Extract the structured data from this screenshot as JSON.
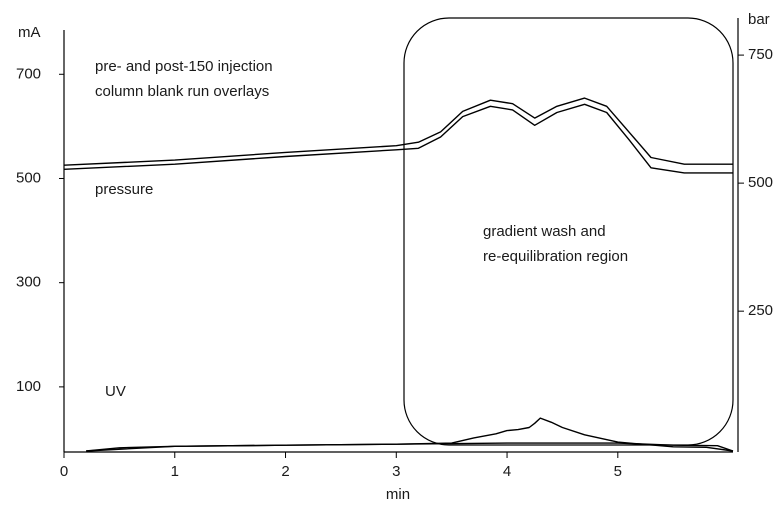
{
  "chart_data": {
    "type": "line",
    "annotations": [
      "pre- and post-150 injection",
      "column blank run overlays",
      "pressure",
      "gradient wash and",
      "re-equilibration region",
      "UV"
    ],
    "xlabel": "min",
    "ylabel": "mA",
    "y2label": "bar",
    "xlim": [
      0,
      6.04
    ],
    "xticks": [
      0,
      1,
      2,
      3,
      4,
      5
    ],
    "ylim": [
      -25,
      785
    ],
    "yticks": [
      100,
      300,
      500,
      700
    ],
    "y2lim": [
      -25,
      799
    ],
    "y2ticks": [
      250,
      500,
      750
    ],
    "series": [
      {
        "color": "#000000",
        "axis": "y2",
        "x": [
          0,
          1,
          2,
          3,
          3.2,
          3.4,
          3.6,
          3.85,
          4.05,
          4.25,
          4.45,
          4.7,
          4.9,
          5.1,
          5.3,
          5.6,
          6.04
        ],
        "values": [
          535,
          545,
          560,
          573,
          580,
          600,
          640,
          662,
          655,
          627,
          650,
          666,
          650,
          600,
          550,
          537,
          537
        ]
      },
      {
        "color": "#000000",
        "axis": "y2",
        "x": [
          0,
          1,
          2,
          3,
          3.2,
          3.4,
          3.6,
          3.85,
          4.05,
          4.25,
          4.45,
          4.7,
          4.9,
          5.1,
          5.3,
          5.6,
          6.04
        ],
        "values": [
          527,
          537,
          552,
          565,
          568,
          590,
          630,
          650,
          643,
          613,
          638,
          654,
          638,
          585,
          530,
          520,
          520
        ]
      },
      {
        "color": "#000000",
        "x": [
          0.2,
          0.5,
          1,
          2,
          3,
          3.5,
          3.7,
          3.9,
          4.0,
          4.1,
          4.2,
          4.25,
          4.3,
          4.4,
          4.5,
          4.7,
          5,
          5.5,
          5.8,
          6.04
        ],
        "values": [
          -23,
          -17,
          -14,
          -12,
          -10,
          -8,
          2,
          10,
          16,
          18,
          22,
          30,
          40,
          32,
          22,
          8,
          -6,
          -15,
          -16,
          -23
        ]
      },
      {
        "color": "#000000",
        "x": [
          0.2,
          1,
          2,
          3,
          4,
          5,
          5.5,
          5.9,
          6.04
        ],
        "values": [
          -23,
          -14,
          -12,
          -10,
          -8,
          -8,
          -12,
          -13,
          -23
        ]
      }
    ]
  }
}
